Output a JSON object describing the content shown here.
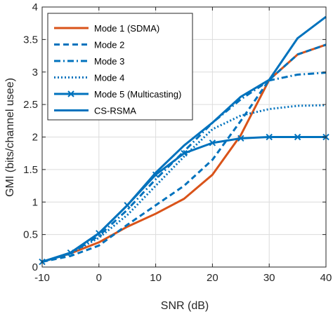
{
  "chart_data": {
    "type": "line",
    "xlabel": "SNR (dB)",
    "ylabel": "GMI (bits/channel usee)",
    "xlim": [
      -10,
      40
    ],
    "ylim": [
      0,
      4
    ],
    "xticks": [
      -10,
      0,
      10,
      20,
      30,
      40
    ],
    "yticks": [
      0,
      0.5,
      1,
      1.5,
      2,
      2.5,
      3,
      3.5,
      4
    ],
    "xtick_labels": [
      "-10",
      "0",
      "10",
      "20",
      "30",
      "40"
    ],
    "ytick_labels": [
      "0",
      "0.5",
      "1",
      "1.5",
      "2",
      "2.5",
      "3",
      "3.5",
      "4"
    ],
    "grid": true,
    "legend_position": "top-left",
    "x": [
      -10,
      -5,
      0,
      5,
      10,
      15,
      20,
      25,
      30,
      35,
      40
    ],
    "series": [
      {
        "name": "Mode 1 (SDMA)",
        "color": "#D95319",
        "dash": "solid",
        "marker": "none",
        "values": [
          0.08,
          0.21,
          0.38,
          0.62,
          0.82,
          1.05,
          1.42,
          2.03,
          2.88,
          3.27,
          3.42
        ]
      },
      {
        "name": "Mode 2",
        "color": "#0072BD",
        "dash": "dashed",
        "marker": "none",
        "values": [
          0.08,
          0.17,
          0.33,
          0.65,
          0.95,
          1.25,
          1.65,
          2.25,
          2.88,
          3.27,
          3.42
        ]
      },
      {
        "name": "Mode 3",
        "color": "#0072BD",
        "dash": "dashdot",
        "marker": "none",
        "values": [
          0.08,
          0.21,
          0.48,
          0.88,
          1.35,
          1.78,
          2.22,
          2.58,
          2.87,
          2.96,
          2.99
        ]
      },
      {
        "name": "Mode 4",
        "color": "#0072BD",
        "dash": "dotted",
        "marker": "none",
        "values": [
          0.08,
          0.21,
          0.45,
          0.8,
          1.25,
          1.7,
          2.12,
          2.33,
          2.43,
          2.48,
          2.49
        ]
      },
      {
        "name": "Mode 5 (Multicasting)",
        "color": "#0072BD",
        "dash": "solid",
        "marker": "x",
        "values": [
          0.08,
          0.22,
          0.52,
          0.95,
          1.42,
          1.75,
          1.91,
          1.98,
          2.0,
          2.0,
          2.0
        ]
      },
      {
        "name": "CS-RSMA",
        "color": "#0072BD",
        "dash": "solid",
        "marker": "none",
        "values": [
          0.08,
          0.22,
          0.52,
          0.95,
          1.45,
          1.87,
          2.22,
          2.62,
          2.88,
          3.52,
          3.85
        ]
      }
    ]
  }
}
